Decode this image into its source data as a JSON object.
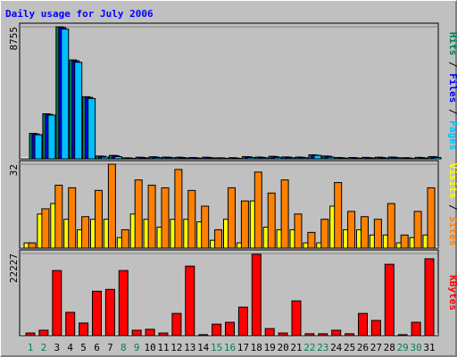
{
  "title": "Daily usage for July 2006",
  "chart_data": [
    {
      "type": "bar",
      "ylim": [
        0,
        8755
      ],
      "yticks": [
        8755
      ],
      "legend_separator": " / ",
      "series": [
        {
          "name": "Pages",
          "color": "#00c0ff",
          "values": [
            1600,
            2900,
            8600,
            6400,
            4000,
            120,
            150,
            40,
            60,
            80,
            70,
            60,
            50,
            60,
            40,
            40,
            90,
            70,
            100,
            70,
            70,
            230,
            110,
            50,
            50,
            60,
            60,
            70,
            40,
            60,
            90
          ]
        },
        {
          "name": "Files",
          "color": "#0000ff",
          "values": [
            1650,
            2950,
            8700,
            6500,
            4080,
            170,
            210,
            60,
            90,
            120,
            100,
            90,
            70,
            90,
            60,
            60,
            130,
            100,
            150,
            110,
            100,
            250,
            170,
            70,
            70,
            80,
            90,
            100,
            60,
            80,
            130
          ]
        },
        {
          "name": "Hits",
          "color": "#00805c",
          "values": [
            1690,
            2990,
            8755,
            6560,
            4120,
            190,
            230,
            70,
            110,
            140,
            120,
            110,
            90,
            110,
            70,
            80,
            150,
            120,
            170,
            130,
            120,
            270,
            190,
            90,
            90,
            100,
            110,
            120,
            80,
            100,
            150
          ]
        }
      ]
    },
    {
      "type": "bar",
      "ylim": [
        0,
        32
      ],
      "yticks": [
        32
      ],
      "legend_separator": " / ",
      "series": [
        {
          "name": "Sites",
          "color": "#ff8000",
          "values": [
            2,
            15,
            24,
            23,
            12,
            22,
            32,
            7,
            26,
            24,
            23,
            30,
            22,
            16,
            7,
            23,
            18,
            29,
            21,
            26,
            13,
            6,
            11,
            25,
            14,
            12,
            11,
            17,
            5,
            14,
            23
          ]
        },
        {
          "name": "Visits",
          "color": "#ffff00",
          "values": [
            2,
            13,
            17,
            11,
            7,
            11,
            11,
            4,
            13,
            11,
            8,
            11,
            11,
            10,
            3,
            11,
            2,
            18,
            8,
            7,
            7,
            2,
            2,
            16,
            7,
            7,
            5,
            5,
            2,
            4,
            5
          ]
        }
      ]
    },
    {
      "type": "bar",
      "ylim": [
        0,
        22227
      ],
      "yticks": [
        22227
      ],
      "categories": [
        "1",
        "2",
        "3",
        "4",
        "5",
        "6",
        "7",
        "8",
        "9",
        "10",
        "11",
        "12",
        "13",
        "14",
        "15",
        "16",
        "17",
        "18",
        "19",
        "20",
        "21",
        "22",
        "23",
        "24",
        "25",
        "26",
        "27",
        "28",
        "29",
        "30",
        "31"
      ],
      "category_colors": [
        "#00805c",
        "#00805c",
        "#000000",
        "#000000",
        "#000000",
        "#000000",
        "#000000",
        "#00805c",
        "#00805c",
        "#000000",
        "#000000",
        "#000000",
        "#000000",
        "#000000",
        "#00805c",
        "#00805c",
        "#000000",
        "#000000",
        "#000000",
        "#000000",
        "#000000",
        "#00805c",
        "#00805c",
        "#000000",
        "#000000",
        "#000000",
        "#000000",
        "#000000",
        "#00805c",
        "#00805c",
        "#000000"
      ],
      "series": [
        {
          "name": "KBytes",
          "color": "#ff0000",
          "values": [
            700,
            1450,
            17600,
            6300,
            3400,
            12000,
            12500,
            17600,
            1450,
            1700,
            700,
            6000,
            18800,
            250,
            3100,
            3600,
            7700,
            22000,
            1900,
            700,
            9400,
            500,
            500,
            1450,
            500,
            6000,
            4100,
            19300,
            250,
            3600,
            20800
          ]
        }
      ]
    }
  ]
}
